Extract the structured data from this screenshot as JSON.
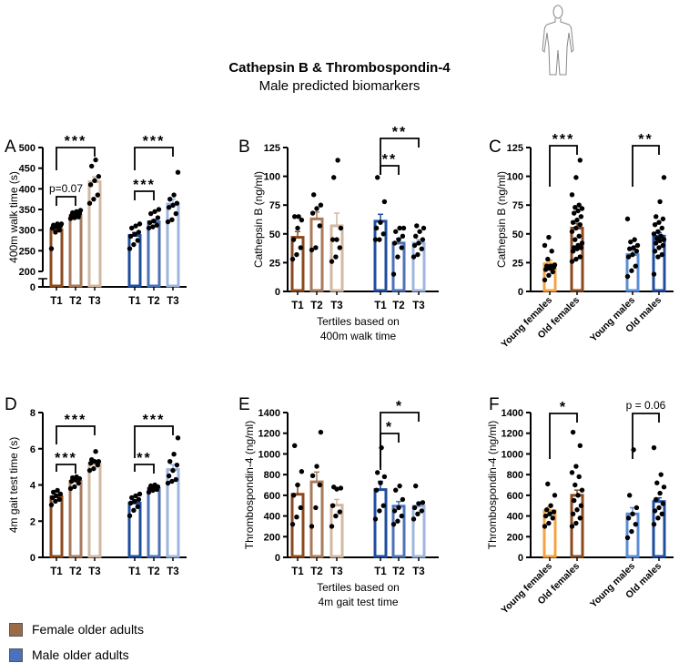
{
  "header": {
    "title": "Cathepsin B & Thrombospondin-4",
    "subtitle": "Male predicted biomarkers",
    "icon": "human-body-icon"
  },
  "legend": [
    {
      "label": "Female older adults",
      "color": "#9a6a4a"
    },
    {
      "label": "Male older adults",
      "color": "#4a72b8"
    }
  ],
  "chart_data": [
    {
      "id": "A",
      "type": "bar",
      "letter": "A",
      "ylabel": "400m walk time (s)",
      "ylim": [
        200,
        500
      ],
      "axis_break": true,
      "yticks": [
        200,
        250,
        300,
        350,
        400,
        450,
        500
      ],
      "break_tick": 0,
      "xlabel": [],
      "groups": [
        {
          "label": "T1",
          "color": "#8b4a1e",
          "mean": 301,
          "sem": 6,
          "points": [
            255,
            295,
            300,
            305,
            308,
            310,
            312,
            315,
            315
          ]
        },
        {
          "label": "T2",
          "color": "#a97a5a",
          "mean": 335,
          "sem": 3,
          "points": [
            328,
            330,
            332,
            335,
            338,
            340,
            342,
            345,
            348
          ]
        },
        {
          "label": "T3",
          "color": "#d2b8a0",
          "mean": 417,
          "sem": 12,
          "points": [
            365,
            375,
            385,
            410,
            420,
            430,
            455,
            470
          ]
        },
        {
          "label": "T1",
          "color": "#1f4e9e",
          "mean": 287,
          "sem": 7,
          "points": [
            255,
            265,
            275,
            285,
            290,
            295,
            305,
            310,
            315
          ]
        },
        {
          "label": "T2",
          "color": "#4c72b8",
          "mean": 320,
          "sem": 5,
          "points": [
            305,
            308,
            312,
            318,
            322,
            330,
            340,
            345,
            350
          ]
        },
        {
          "label": "T3",
          "color": "#9db5df",
          "mean": 363,
          "sem": 12,
          "points": [
            320,
            325,
            340,
            355,
            360,
            365,
            375,
            385,
            440
          ]
        }
      ],
      "brackets": [
        {
          "from": 0,
          "to": 2,
          "label": "***"
        },
        {
          "from": 0,
          "to": 1,
          "label": "p=0.07"
        },
        {
          "from": 3,
          "to": 5,
          "label": "***"
        },
        {
          "from": 3,
          "to": 4,
          "label": "***"
        }
      ]
    },
    {
      "id": "B",
      "type": "bar",
      "letter": "B",
      "ylabel": "Cathepsin B (ng/ml)",
      "ylim": [
        0,
        125
      ],
      "yticks": [
        0,
        25,
        50,
        75,
        100,
        125
      ],
      "xlabel": [
        "Tertiles based on",
        "400m walk time"
      ],
      "groups": [
        {
          "label": "T1",
          "color": "#8b4a1e",
          "mean": 47,
          "sem": 5,
          "points": [
            28,
            32,
            38,
            45,
            55,
            62,
            65,
            65
          ]
        },
        {
          "label": "T2",
          "color": "#a97a5a",
          "mean": 63,
          "sem": 6,
          "points": [
            36,
            38,
            57,
            68,
            72,
            75,
            84
          ]
        },
        {
          "label": "T3",
          "color": "#d2b8a0",
          "mean": 57,
          "sem": 11,
          "points": [
            26,
            30,
            38,
            45,
            45,
            55,
            99,
            114
          ]
        },
        {
          "label": "T1",
          "color": "#1f4e9e",
          "mean": 61,
          "sem": 6,
          "points": [
            45,
            45,
            50,
            55,
            60,
            78,
            99
          ]
        },
        {
          "label": "T2",
          "color": "#4c72b8",
          "mean": 42,
          "sem": 4,
          "points": [
            15,
            30,
            38,
            42,
            45,
            48,
            52,
            55,
            55
          ]
        },
        {
          "label": "T3",
          "color": "#9db5df",
          "mean": 42,
          "sem": 3,
          "points": [
            30,
            32,
            37,
            40,
            42,
            45,
            48,
            52,
            55,
            57
          ]
        }
      ],
      "brackets": [
        {
          "from": 3,
          "to": 5,
          "label": "**"
        },
        {
          "from": 3,
          "to": 4,
          "label": "**"
        }
      ]
    },
    {
      "id": "C",
      "type": "bar",
      "letter": "C",
      "ylabel": "Cathepsin B (ng/ml)",
      "ylim": [
        0,
        125
      ],
      "yticks": [
        0,
        25,
        50,
        75,
        100,
        125
      ],
      "xlabel": [],
      "groups": [
        {
          "label": "Young females",
          "color": "#f4a340",
          "mean": 24,
          "sem": 3,
          "points": [
            10,
            14,
            17,
            19,
            20,
            21,
            22,
            22,
            23,
            28,
            35,
            40,
            47
          ]
        },
        {
          "label": "Old females",
          "color": "#8b4a1e",
          "mean": 55,
          "sem": 4,
          "points": [
            26,
            28,
            30,
            35,
            37,
            38,
            38,
            40,
            42,
            45,
            48,
            52,
            55,
            58,
            60,
            62,
            65,
            68,
            70,
            72,
            73,
            75,
            84,
            99,
            114
          ]
        },
        {
          "label": "Young males",
          "color": "#5b8cd6",
          "mean": 32,
          "sem": 4,
          "points": [
            13,
            18,
            22,
            30,
            32,
            35,
            37,
            38,
            40,
            43,
            45,
            63
          ]
        },
        {
          "label": "Old males",
          "color": "#1f4e9e",
          "mean": 48,
          "sem": 3,
          "points": [
            15,
            30,
            32,
            35,
            38,
            40,
            42,
            44,
            45,
            46,
            48,
            50,
            52,
            55,
            58,
            60,
            63,
            65,
            78,
            99
          ]
        }
      ],
      "brackets": [
        {
          "from": 0,
          "to": 1,
          "label": "***"
        },
        {
          "from": 2,
          "to": 3,
          "label": "**"
        }
      ]
    },
    {
      "id": "D",
      "type": "bar",
      "letter": "D",
      "ylabel": "4m gait test time (s)",
      "ylim": [
        0,
        8
      ],
      "yticks": [
        0,
        2,
        4,
        6,
        8
      ],
      "xlabel": [],
      "groups": [
        {
          "label": "T1",
          "color": "#8b4a1e",
          "mean": 3.35,
          "sem": 0.1,
          "points": [
            2.9,
            3.1,
            3.2,
            3.3,
            3.4,
            3.5,
            3.6,
            3.7
          ]
        },
        {
          "label": "T2",
          "color": "#a97a5a",
          "mean": 4.2,
          "sem": 0.08,
          "points": [
            3.8,
            3.9,
            4.1,
            4.2,
            4.3,
            4.35,
            4.4,
            4.45
          ]
        },
        {
          "label": "T3",
          "color": "#d2b8a0",
          "mean": 5.15,
          "sem": 0.12,
          "points": [
            4.8,
            4.9,
            5.1,
            5.2,
            5.3,
            5.3,
            5.4,
            5.85
          ]
        },
        {
          "label": "T1",
          "color": "#1f4e9e",
          "mean": 3.0,
          "sem": 0.12,
          "points": [
            2.3,
            2.6,
            2.8,
            3.0,
            3.1,
            3.2,
            3.3,
            3.4,
            3.5
          ]
        },
        {
          "label": "T2",
          "color": "#4c72b8",
          "mean": 3.8,
          "sem": 0.05,
          "points": [
            3.6,
            3.7,
            3.75,
            3.8,
            3.85,
            3.9,
            3.95,
            4.0
          ]
        },
        {
          "label": "T3",
          "color": "#9db5df",
          "mean": 4.85,
          "sem": 0.28,
          "points": [
            4.1,
            4.2,
            4.3,
            4.5,
            4.8,
            5.1,
            5.3,
            5.7,
            6.6
          ]
        }
      ],
      "brackets": [
        {
          "from": 0,
          "to": 2,
          "label": "***"
        },
        {
          "from": 0,
          "to": 1,
          "label": "***"
        },
        {
          "from": 3,
          "to": 5,
          "label": "***"
        },
        {
          "from": 3,
          "to": 4,
          "label": "**"
        }
      ]
    },
    {
      "id": "E",
      "type": "bar",
      "letter": "E",
      "ylabel": "Thrombospondin-4 (ng/ml)",
      "ylim": [
        0,
        1400
      ],
      "yticks": [
        0,
        200,
        400,
        600,
        800,
        1000,
        1200,
        1400
      ],
      "xlabel": [
        "Tertiles based on",
        "4m gait test time"
      ],
      "groups": [
        {
          "label": "T1",
          "color": "#8b4a1e",
          "mean": 610,
          "sem": 90,
          "points": [
            320,
            390,
            480,
            600,
            700,
            830,
            1080
          ]
        },
        {
          "label": "T2",
          "color": "#a97a5a",
          "mean": 730,
          "sem": 95,
          "points": [
            300,
            480,
            700,
            790,
            880,
            1210
          ]
        },
        {
          "label": "T3",
          "color": "#d2b8a0",
          "mean": 505,
          "sem": 55,
          "points": [
            300,
            400,
            440,
            500,
            660,
            670,
            680
          ]
        },
        {
          "label": "T1",
          "color": "#1f4e9e",
          "mean": 655,
          "sem": 80,
          "points": [
            370,
            450,
            500,
            650,
            720,
            780,
            820,
            1060
          ]
        },
        {
          "label": "T2",
          "color": "#4c72b8",
          "mean": 495,
          "sem": 45,
          "points": [
            320,
            350,
            400,
            450,
            480,
            560,
            650,
            690
          ]
        },
        {
          "label": "T3",
          "color": "#9db5df",
          "mean": 495,
          "sem": 35,
          "points": [
            370,
            420,
            450,
            480,
            520,
            530,
            690
          ]
        }
      ],
      "brackets": [
        {
          "from": 3,
          "to": 5,
          "label": "*"
        },
        {
          "from": 3,
          "to": 4,
          "label": "*"
        }
      ]
    },
    {
      "id": "F",
      "type": "bar",
      "letter": "F",
      "ylabel": "Thrombospondin-4 (ng/ml)",
      "ylim": [
        0,
        1400
      ],
      "yticks": [
        0,
        200,
        400,
        600,
        800,
        1000,
        1200,
        1400
      ],
      "xlabel": [],
      "groups": [
        {
          "label": "Young females",
          "color": "#f4a340",
          "mean": 450,
          "sem": 40,
          "points": [
            300,
            330,
            380,
            400,
            420,
            440,
            460,
            500,
            600,
            710
          ]
        },
        {
          "label": "Old females",
          "color": "#8b4a1e",
          "mean": 600,
          "sem": 50,
          "points": [
            300,
            330,
            380,
            420,
            460,
            500,
            550,
            600,
            650,
            700,
            780,
            820,
            880,
            1080,
            1210
          ]
        },
        {
          "label": "Young males",
          "color": "#5b8cd6",
          "mean": 420,
          "sem": 60,
          "points": [
            190,
            250,
            320,
            380,
            420,
            480,
            600,
            1040
          ]
        },
        {
          "label": "Old males",
          "color": "#1f4e9e",
          "mean": 540,
          "sem": 35,
          "points": [
            320,
            380,
            420,
            450,
            480,
            520,
            560,
            620,
            680,
            720,
            800,
            1060
          ]
        }
      ],
      "brackets": [
        {
          "from": 0,
          "to": 1,
          "label": "*"
        },
        {
          "from": 2,
          "to": 3,
          "label": "p = 0.06"
        }
      ]
    }
  ]
}
